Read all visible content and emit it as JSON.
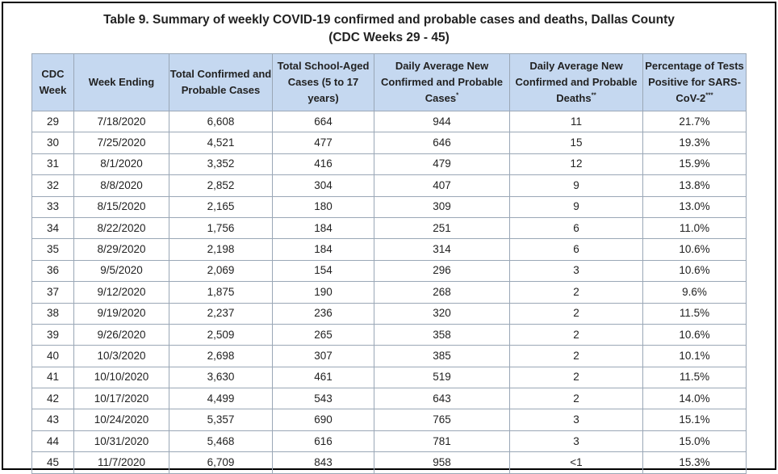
{
  "title": {
    "line1": "Table 9. Summary of weekly COVID-19 confirmed and probable cases and deaths, Dallas County",
    "line2": "(CDC Weeks 29 - 45)"
  },
  "headers": [
    {
      "text": "CDC Week",
      "sup": ""
    },
    {
      "text": "Week Ending",
      "sup": ""
    },
    {
      "text": "Total Confirmed and Probable Cases",
      "sup": ""
    },
    {
      "text": "Total School-Aged Cases (5 to 17 years)",
      "sup": ""
    },
    {
      "text": "Daily Average New Confirmed and Probable Cases",
      "sup": "*"
    },
    {
      "text": "Daily Average New Confirmed and Probable Deaths",
      "sup": "**"
    },
    {
      "text": "Percentage of Tests Positive for SARS-CoV-2",
      "sup": "***"
    }
  ],
  "rows": [
    [
      "29",
      "7/18/2020",
      "6,608",
      "664",
      "944",
      "11",
      "21.7%"
    ],
    [
      "30",
      "7/25/2020",
      "4,521",
      "477",
      "646",
      "15",
      "19.3%"
    ],
    [
      "31",
      "8/1/2020",
      "3,352",
      "416",
      "479",
      "12",
      "15.9%"
    ],
    [
      "32",
      "8/8/2020",
      "2,852",
      "304",
      "407",
      "9",
      "13.8%"
    ],
    [
      "33",
      "8/15/2020",
      "2,165",
      "180",
      "309",
      "9",
      "13.0%"
    ],
    [
      "34",
      "8/22/2020",
      "1,756",
      "184",
      "251",
      "6",
      "11.0%"
    ],
    [
      "35",
      "8/29/2020",
      "2,198",
      "184",
      "314",
      "6",
      "10.6%"
    ],
    [
      "36",
      "9/5/2020",
      "2,069",
      "154",
      "296",
      "3",
      "10.6%"
    ],
    [
      "37",
      "9/12/2020",
      "1,875",
      "190",
      "268",
      "2",
      "9.6%"
    ],
    [
      "38",
      "9/19/2020",
      "2,237",
      "236",
      "320",
      "2",
      "11.5%"
    ],
    [
      "39",
      "9/26/2020",
      "2,509",
      "265",
      "358",
      "2",
      "10.6%"
    ],
    [
      "40",
      "10/3/2020",
      "2,698",
      "307",
      "385",
      "2",
      "10.1%"
    ],
    [
      "41",
      "10/10/2020",
      "3,630",
      "461",
      "519",
      "2",
      "11.5%"
    ],
    [
      "42",
      "10/17/2020",
      "4,499",
      "543",
      "643",
      "2",
      "14.0%"
    ],
    [
      "43",
      "10/24/2020",
      "5,357",
      "690",
      "765",
      "3",
      "15.1%"
    ],
    [
      "44",
      "10/31/2020",
      "5,468",
      "616",
      "781",
      "3",
      "15.0%"
    ],
    [
      "45",
      "11/7/2020",
      "6,709",
      "843",
      "958",
      "<1",
      "15.3%"
    ]
  ]
}
